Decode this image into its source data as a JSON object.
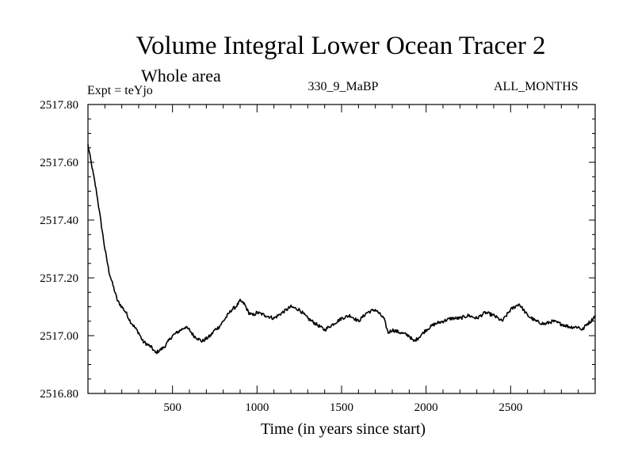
{
  "chart_data": {
    "type": "line",
    "title": "Volume Integral Lower Ocean Tracer 2",
    "subtitle": "Whole area",
    "experiment_label": "Expt = teYjo",
    "period_label": "330_9_MaBP",
    "months_label": "ALL_MONTHS",
    "xlabel": "Time (in years since start)",
    "ylabel": "",
    "xlim": [
      0,
      3000
    ],
    "ylim": [
      2516.8,
      2517.8
    ],
    "x_ticks": [
      500,
      1000,
      1500,
      2000,
      2500
    ],
    "x_tick_labels": [
      "500",
      "1000",
      "1500",
      "2000",
      "2500"
    ],
    "y_ticks": [
      2516.8,
      2517.0,
      2517.2,
      2517.4,
      2517.6,
      2517.8
    ],
    "y_tick_labels": [
      "2516.80",
      "2517.00",
      "2517.20",
      "2517.40",
      "2517.60",
      "2517.80"
    ],
    "grid": false,
    "line_color": "#000000",
    "series": [
      {
        "name": "Volume Integral Lower Ocean Tracer 2",
        "x": [
          0,
          25,
          50,
          75,
          100,
          125,
          150,
          175,
          200,
          225,
          250,
          275,
          300,
          325,
          350,
          375,
          400,
          425,
          450,
          475,
          500,
          525,
          550,
          575,
          600,
          625,
          650,
          675,
          700,
          725,
          750,
          775,
          800,
          825,
          850,
          875,
          900,
          925,
          950,
          975,
          1000,
          1050,
          1100,
          1150,
          1200,
          1250,
          1300,
          1350,
          1400,
          1450,
          1500,
          1550,
          1600,
          1650,
          1700,
          1750,
          1775,
          1800,
          1850,
          1900,
          1925,
          1950,
          2000,
          2050,
          2100,
          2150,
          2200,
          2250,
          2300,
          2350,
          2400,
          2450,
          2500,
          2550,
          2600,
          2650,
          2700,
          2750,
          2800,
          2850,
          2900,
          2925,
          2950,
          2975,
          3000
        ],
        "values": [
          2517.66,
          2517.58,
          2517.5,
          2517.4,
          2517.3,
          2517.22,
          2517.17,
          2517.12,
          2517.1,
          2517.08,
          2517.05,
          2517.03,
          2517.01,
          2516.98,
          2516.97,
          2516.96,
          2516.94,
          2516.95,
          2516.96,
          2516.98,
          2517.0,
          2517.01,
          2517.02,
          2517.03,
          2517.02,
          2517.0,
          2516.99,
          2516.98,
          2516.99,
          2517.0,
          2517.02,
          2517.03,
          2517.05,
          2517.07,
          2517.09,
          2517.1,
          2517.12,
          2517.11,
          2517.08,
          2517.07,
          2517.08,
          2517.07,
          2517.06,
          2517.08,
          2517.1,
          2517.09,
          2517.06,
          2517.04,
          2517.02,
          2517.04,
          2517.06,
          2517.07,
          2517.05,
          2517.08,
          2517.09,
          2517.06,
          2517.01,
          2517.02,
          2517.01,
          2517.0,
          2516.98,
          2516.99,
          2517.02,
          2517.04,
          2517.05,
          2517.06,
          2517.06,
          2517.07,
          2517.06,
          2517.08,
          2517.07,
          2517.05,
          2517.09,
          2517.11,
          2517.07,
          2517.05,
          2517.04,
          2517.05,
          2517.04,
          2517.03,
          2517.03,
          2517.02,
          2517.04,
          2517.05,
          2517.07
        ]
      }
    ]
  }
}
